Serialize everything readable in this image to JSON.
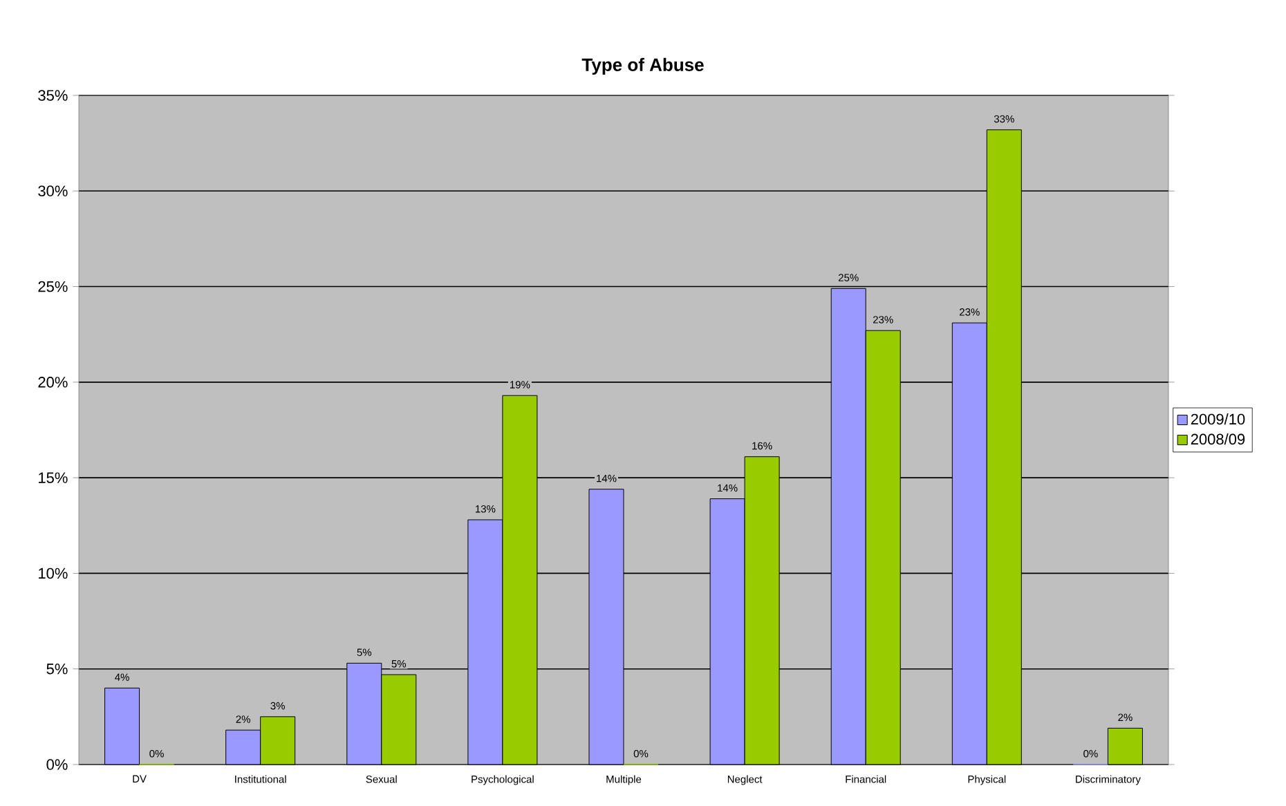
{
  "chart_data": {
    "type": "bar",
    "title": "Type of Abuse",
    "categories": [
      "DV",
      "Institutional",
      "Sexual",
      "Psychological",
      "Multiple",
      "Neglect",
      "Financial",
      "Physical",
      "Discriminatory"
    ],
    "series": [
      {
        "name": "2009/10",
        "color": "#9999ff",
        "values": [
          4.0,
          1.8,
          5.3,
          12.8,
          14.4,
          13.9,
          24.9,
          23.1,
          0
        ],
        "value_labels": [
          "4%",
          "2%",
          "5%",
          "13%",
          "14%",
          "14%",
          "25%",
          "23%",
          "0%"
        ]
      },
      {
        "name": "2008/09",
        "color": "#99cc00",
        "values": [
          0,
          2.5,
          4.7,
          19.3,
          0,
          16.1,
          22.7,
          33.2,
          1.9
        ],
        "value_labels": [
          "0%",
          "3%",
          "5%",
          "19%",
          "0%",
          "16%",
          "23%",
          "33%",
          "2%"
        ]
      }
    ],
    "ylim": [
      0,
      35
    ],
    "yticks": [
      {
        "value": 0,
        "label": "0%"
      },
      {
        "value": 5,
        "label": "5%"
      },
      {
        "value": 10,
        "label": "10%"
      },
      {
        "value": 15,
        "label": "15%"
      },
      {
        "value": 20,
        "label": "20%"
      },
      {
        "value": 25,
        "label": "25%"
      },
      {
        "value": 30,
        "label": "30%"
      },
      {
        "value": 35,
        "label": "35%"
      }
    ],
    "grid": "y",
    "legend": "right"
  }
}
